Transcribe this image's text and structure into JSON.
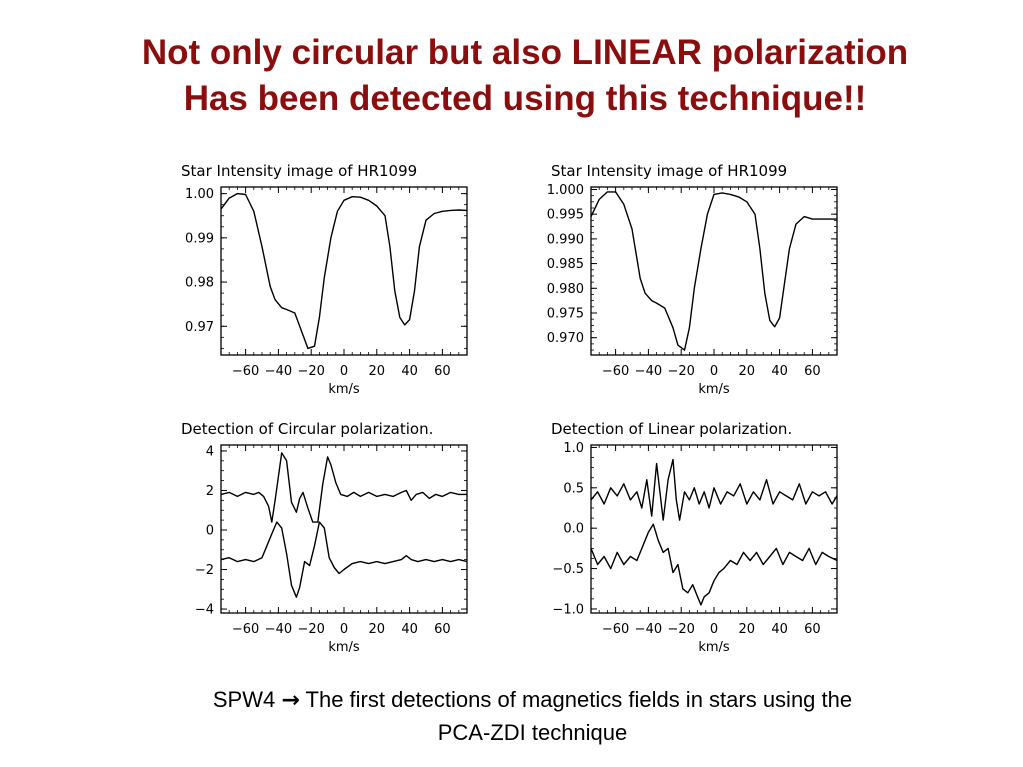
{
  "slide": {
    "title_line1": "Not only circular but also LINEAR polarization",
    "title_line2": "Has been detected using this technique!!",
    "caption_line1_pre": "SPW4",
    "caption_arrow": "→",
    "caption_line1_post": "The first detections of magnetics fields in stars using the",
    "caption_line2": "PCA-ZDI technique"
  },
  "chart_data": [
    {
      "type": "line",
      "title": "Star Intensity image of HR1099",
      "xlabel": "km/s",
      "ylabel": "",
      "xlim": [
        -75,
        75
      ],
      "ylim": [
        0.9635,
        1.0015
      ],
      "xticks": [
        -60,
        -40,
        -20,
        0,
        20,
        40,
        60
      ],
      "yticks": [
        0.97,
        0.98,
        0.99,
        1.0
      ],
      "ytick_labels": [
        "0.97",
        "0.98",
        "0.99",
        "1.00"
      ],
      "series": [
        {
          "x": [
            -75,
            -70,
            -65,
            -60,
            -55,
            -50,
            -45,
            -42,
            -38,
            -35,
            -30,
            -25,
            -22,
            -18,
            -15,
            -12,
            -8,
            -4,
            0,
            5,
            10,
            15,
            20,
            25,
            28,
            31,
            34,
            37,
            40,
            43,
            46,
            50,
            55,
            60,
            65,
            70,
            75
          ],
          "y": [
            0.9965,
            0.999,
            1.0,
            0.9998,
            0.996,
            0.988,
            0.979,
            0.976,
            0.9742,
            0.9738,
            0.973,
            0.968,
            0.965,
            0.9655,
            0.972,
            0.981,
            0.99,
            0.996,
            0.9985,
            0.9993,
            0.9992,
            0.9985,
            0.9972,
            0.995,
            0.988,
            0.978,
            0.972,
            0.9703,
            0.9715,
            0.978,
            0.988,
            0.994,
            0.9955,
            0.996,
            0.9962,
            0.9963,
            0.9962
          ]
        }
      ]
    },
    {
      "type": "line",
      "title": "Star Intensity image of HR1099",
      "xlabel": "km/s",
      "ylabel": "",
      "xlim": [
        -75,
        75
      ],
      "ylim": [
        0.9665,
        1.0005
      ],
      "xticks": [
        -60,
        -40,
        -20,
        0,
        20,
        40,
        60
      ],
      "yticks": [
        0.97,
        0.975,
        0.98,
        0.985,
        0.99,
        0.995,
        1.0
      ],
      "ytick_labels": [
        "0.970",
        "0.975",
        "0.980",
        "0.985",
        "0.990",
        "0.995",
        "1.000"
      ],
      "series": [
        {
          "x": [
            -75,
            -70,
            -65,
            -60,
            -55,
            -50,
            -45,
            -42,
            -38,
            -35,
            -30,
            -25,
            -22,
            -18,
            -15,
            -12,
            -8,
            -4,
            0,
            5,
            10,
            15,
            20,
            25,
            28,
            31,
            34,
            37,
            40,
            43,
            46,
            50,
            55,
            60,
            65,
            70,
            75
          ],
          "y": [
            0.9945,
            0.998,
            0.9995,
            0.9995,
            0.997,
            0.992,
            0.982,
            0.979,
            0.9775,
            0.977,
            0.976,
            0.972,
            0.9685,
            0.9675,
            0.972,
            0.98,
            0.988,
            0.995,
            0.999,
            0.9993,
            0.999,
            0.9985,
            0.9975,
            0.995,
            0.988,
            0.979,
            0.9735,
            0.9722,
            0.974,
            0.981,
            0.988,
            0.993,
            0.9945,
            0.994,
            0.994,
            0.994,
            0.994
          ]
        }
      ]
    },
    {
      "type": "line",
      "title": "Detection of Circular polarization.",
      "xlabel": "km/s",
      "ylabel": "",
      "xlim": [
        -75,
        75
      ],
      "ylim": [
        -4.2,
        4.3
      ],
      "xticks": [
        -60,
        -40,
        -20,
        0,
        20,
        40,
        60
      ],
      "yticks": [
        -4,
        -2,
        0,
        2,
        4
      ],
      "ytick_labels": [
        "−4",
        "−2",
        "0",
        "2",
        "4"
      ],
      "series": [
        {
          "x": [
            -75,
            -70,
            -65,
            -60,
            -55,
            -52,
            -49,
            -46,
            -44,
            -42,
            -40,
            -38,
            -35,
            -32,
            -29,
            -27,
            -25,
            -22,
            -19,
            -16,
            -13,
            -10,
            -8,
            -5,
            -2,
            2,
            6,
            10,
            15,
            20,
            25,
            30,
            35,
            38,
            41,
            44,
            48,
            52,
            56,
            60,
            65,
            70,
            75
          ],
          "y": [
            1.8,
            1.9,
            1.7,
            1.9,
            1.8,
            1.9,
            1.7,
            1.2,
            0.4,
            1.5,
            2.7,
            3.9,
            3.5,
            1.4,
            0.9,
            1.6,
            1.9,
            1.1,
            0.4,
            0.4,
            2.3,
            3.7,
            3.3,
            2.4,
            1.8,
            1.7,
            1.9,
            1.7,
            1.9,
            1.7,
            1.8,
            1.7,
            1.9,
            2.0,
            1.5,
            1.8,
            1.9,
            1.6,
            1.8,
            1.7,
            1.9,
            1.8,
            1.8
          ]
        },
        {
          "x": [
            -75,
            -70,
            -65,
            -60,
            -55,
            -50,
            -47,
            -44,
            -41,
            -38,
            -35,
            -32,
            -29,
            -27,
            -24,
            -21,
            -18,
            -15,
            -12,
            -9,
            -6,
            -3,
            0,
            5,
            10,
            15,
            20,
            25,
            30,
            35,
            38,
            41,
            45,
            50,
            55,
            60,
            65,
            70,
            75
          ],
          "y": [
            -1.5,
            -1.4,
            -1.6,
            -1.5,
            -1.6,
            -1.4,
            -0.8,
            -0.2,
            0.4,
            0.1,
            -1.2,
            -2.8,
            -3.4,
            -2.9,
            -1.6,
            -1.8,
            -0.8,
            0.4,
            0.1,
            -1.4,
            -1.9,
            -2.2,
            -2.0,
            -1.7,
            -1.6,
            -1.7,
            -1.6,
            -1.7,
            -1.6,
            -1.5,
            -1.3,
            -1.5,
            -1.6,
            -1.5,
            -1.6,
            -1.5,
            -1.6,
            -1.5,
            -1.6
          ]
        }
      ]
    },
    {
      "type": "line",
      "title": "Detection of Linear polarization.",
      "xlabel": "km/s",
      "ylabel": "",
      "xlim": [
        -75,
        75
      ],
      "ylim": [
        -1.05,
        1.03
      ],
      "xticks": [
        -60,
        -40,
        -20,
        0,
        20,
        40,
        60
      ],
      "yticks": [
        -1.0,
        -0.5,
        0.0,
        0.5,
        1.0
      ],
      "ytick_labels": [
        "−1.0",
        "−0.5",
        "0.0",
        "0.5",
        "1.0"
      ],
      "series": [
        {
          "x": [
            -75,
            -71,
            -67,
            -63,
            -59,
            -55,
            -51,
            -47,
            -44,
            -41,
            -38,
            -35,
            -33,
            -31,
            -28,
            -25,
            -23,
            -21,
            -18,
            -15,
            -12,
            -9,
            -6,
            -3,
            0,
            4,
            8,
            12,
            16,
            20,
            24,
            28,
            32,
            36,
            40,
            44,
            48,
            52,
            56,
            60,
            64,
            68,
            72,
            75
          ],
          "y": [
            0.35,
            0.45,
            0.3,
            0.5,
            0.4,
            0.55,
            0.35,
            0.45,
            0.25,
            0.6,
            0.15,
            0.8,
            0.45,
            0.1,
            0.6,
            0.85,
            0.35,
            0.1,
            0.45,
            0.35,
            0.5,
            0.3,
            0.45,
            0.25,
            0.5,
            0.3,
            0.45,
            0.4,
            0.55,
            0.3,
            0.45,
            0.35,
            0.6,
            0.3,
            0.45,
            0.4,
            0.35,
            0.55,
            0.3,
            0.45,
            0.4,
            0.45,
            0.3,
            0.4
          ]
        },
        {
          "x": [
            -75,
            -71,
            -67,
            -63,
            -59,
            -55,
            -51,
            -47,
            -43,
            -40,
            -37,
            -34,
            -31,
            -28,
            -25,
            -22,
            -19,
            -16,
            -13,
            -10,
            -8,
            -6,
            -3,
            0,
            3,
            6,
            10,
            14,
            18,
            22,
            26,
            30,
            34,
            38,
            42,
            46,
            50,
            54,
            58,
            62,
            66,
            70,
            75
          ],
          "y": [
            -0.25,
            -0.45,
            -0.35,
            -0.5,
            -0.3,
            -0.45,
            -0.35,
            -0.4,
            -0.2,
            -0.05,
            0.05,
            -0.15,
            -0.3,
            -0.25,
            -0.55,
            -0.45,
            -0.75,
            -0.8,
            -0.7,
            -0.85,
            -0.95,
            -0.85,
            -0.8,
            -0.65,
            -0.55,
            -0.5,
            -0.4,
            -0.45,
            -0.3,
            -0.4,
            -0.3,
            -0.45,
            -0.35,
            -0.25,
            -0.45,
            -0.3,
            -0.35,
            -0.4,
            -0.25,
            -0.45,
            -0.3,
            -0.35,
            -0.4
          ]
        }
      ]
    }
  ]
}
